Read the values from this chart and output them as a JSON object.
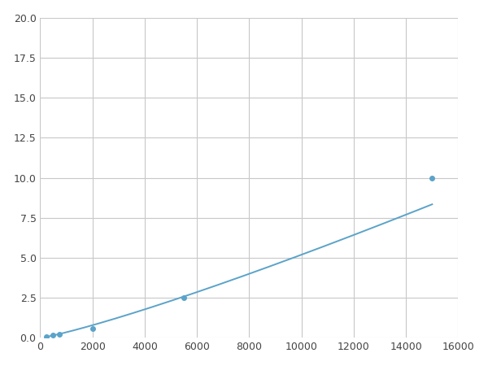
{
  "x": [
    250,
    500,
    750,
    2000,
    5500,
    15000
  ],
  "y": [
    0.08,
    0.18,
    0.22,
    0.6,
    2.5,
    10.0
  ],
  "line_color": "#5ba3c9",
  "marker_color": "#5ba3c9",
  "marker_style": "o",
  "marker_size": 4,
  "linewidth": 1.4,
  "xlim": [
    0,
    16000
  ],
  "ylim": [
    0,
    20
  ],
  "xticks": [
    0,
    2000,
    4000,
    6000,
    8000,
    10000,
    12000,
    14000,
    16000
  ],
  "yticks": [
    0.0,
    2.5,
    5.0,
    7.5,
    10.0,
    12.5,
    15.0,
    17.5,
    20.0
  ],
  "grid": true,
  "grid_color": "#c8c8c8",
  "background_color": "#ffffff",
  "figure_bg": "#ffffff"
}
